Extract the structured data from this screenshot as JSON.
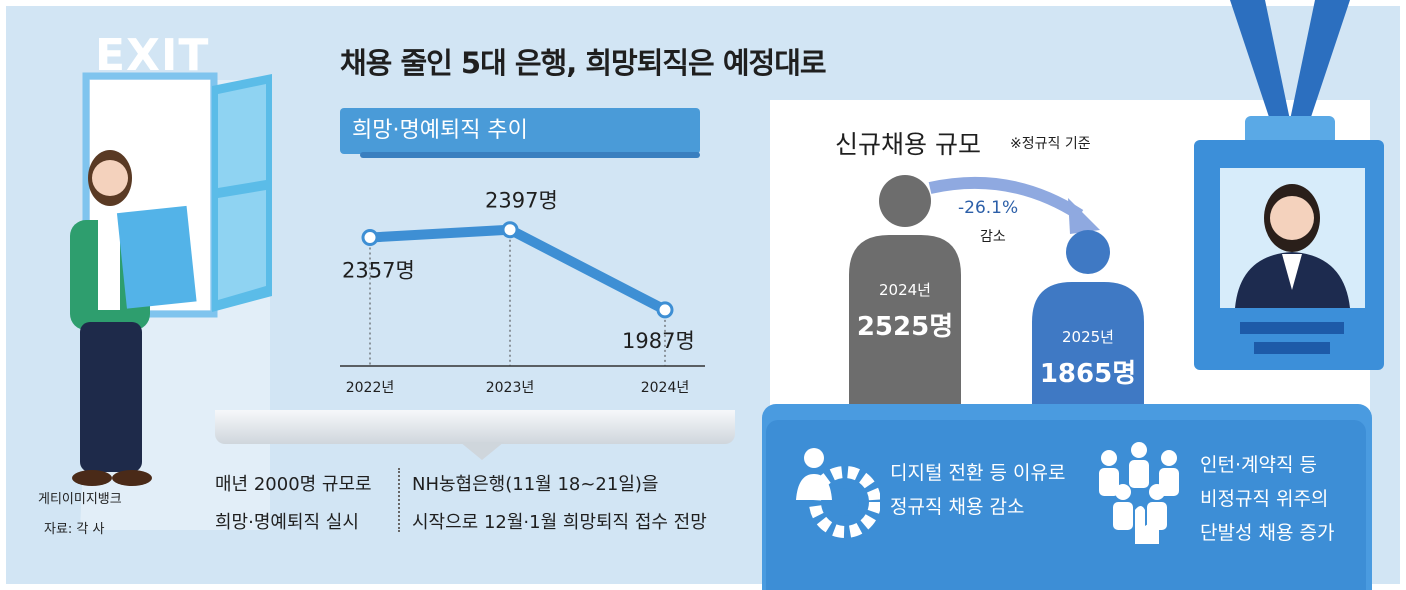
{
  "title": "채용 줄인 5대 은행, 희망퇴직은 예정대로",
  "exit_sign": "EXIT",
  "retire_chart": {
    "label": "희망·명예퇴직 추이"
  },
  "hire_chart": {
    "label": "신규채용 규모",
    "note": "※정규직 기준",
    "change_pct": "-26.1%",
    "change_word": "감소"
  },
  "notes": {
    "left_line1": "매년 2000명 규모로",
    "left_line2": "희망·명예퇴직 실시",
    "right_line1": "NH농협은행(11월 18~21일)을",
    "right_line2": "시작으로 12월·1월 희망퇴직 접수 전망"
  },
  "cards": {
    "digital": [
      "디지털 전환 등 이유로",
      "정규직 채용 감소"
    ],
    "contract": [
      "인턴·계약직 등",
      "비정규직 위주의",
      "단발성 채용 증가"
    ]
  },
  "credit": "게티이미지뱅크",
  "source": "자료: 각 사",
  "colors": {
    "accent": "#4a9bd8",
    "bar_2024": "#6d6d6d",
    "bar_2025": "#3f79c4",
    "card": "#3d8ed6"
  },
  "chart_data": [
    {
      "type": "line",
      "title": "희망·명예퇴직 추이",
      "categories": [
        "2022년",
        "2023년",
        "2024년"
      ],
      "values": [
        2357,
        2397,
        1987
      ],
      "value_labels": [
        "2357명",
        "2397명",
        "1987명"
      ],
      "ylim": [
        1700,
        2600
      ]
    },
    {
      "type": "bar",
      "title": "신규채용 규모",
      "categories": [
        "2024년",
        "2025년"
      ],
      "values": [
        2525,
        1865
      ],
      "value_labels": [
        "2525명",
        "1865명"
      ],
      "change": "-26.1%"
    }
  ]
}
